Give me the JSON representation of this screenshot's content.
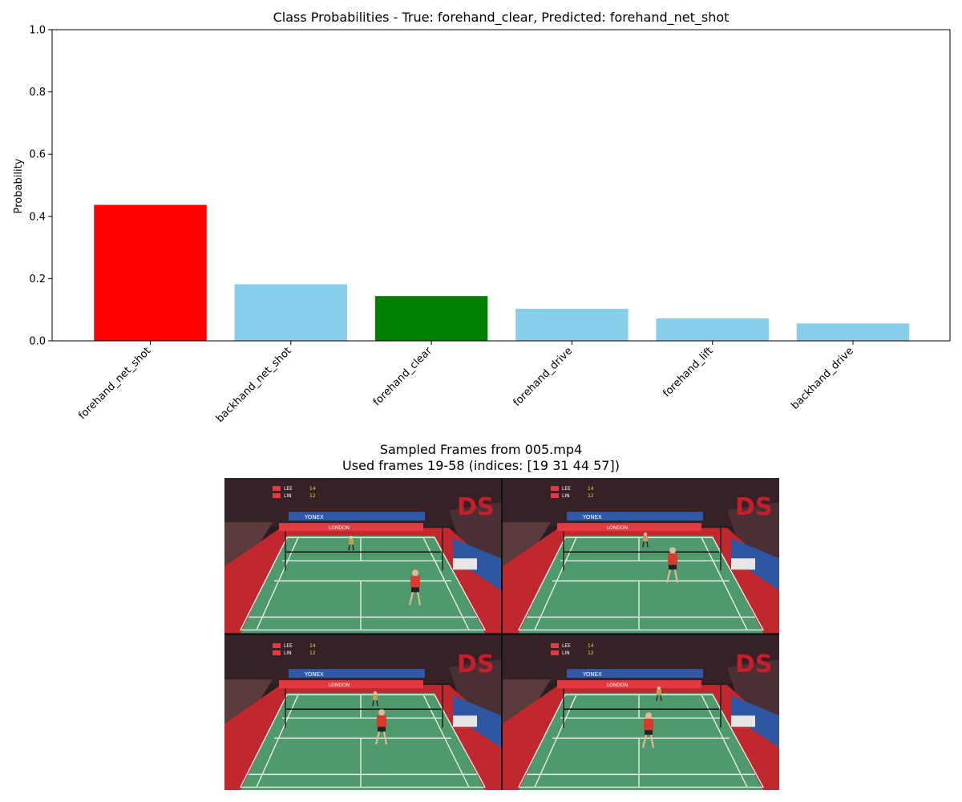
{
  "chart_data": {
    "type": "bar",
    "title": "Class Probabilities - True: forehand_clear, Predicted: forehand_net_shot",
    "ylabel": "Probability",
    "xlabel": "",
    "ylim": [
      0,
      1.0
    ],
    "yticks": [
      "0.0",
      "0.2",
      "0.4",
      "0.6",
      "0.8",
      "1.0"
    ],
    "categories": [
      "forehand_net_shot",
      "backhand_net_shot",
      "forehand_clear",
      "forehand_drive",
      "forehand_lift",
      "backhand_drive"
    ],
    "values": [
      0.437,
      0.182,
      0.144,
      0.103,
      0.072,
      0.056
    ],
    "colors": [
      "#ff0000",
      "#87ceeb",
      "#008000",
      "#87ceeb",
      "#87ceeb",
      "#87ceeb"
    ],
    "grid": false,
    "legend": "none"
  },
  "frames": {
    "title_line1": "Sampled Frames from 005.mp4",
    "title_line2": "Used frames 19-58 (indices: [19 31 44 57])",
    "scoreboard": {
      "player1": "LEE",
      "player2": "LIN",
      "score1": "14",
      "score2": "12"
    },
    "banner_text": "YONEX",
    "board_text": "LONDON"
  }
}
